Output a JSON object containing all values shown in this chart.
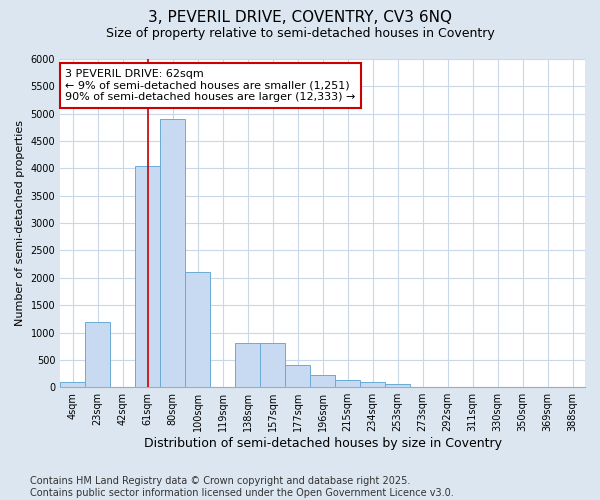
{
  "title1": "3, PEVERIL DRIVE, COVENTRY, CV3 6NQ",
  "title2": "Size of property relative to semi-detached houses in Coventry",
  "xlabel": "Distribution of semi-detached houses by size in Coventry",
  "ylabel": "Number of semi-detached properties",
  "categories": [
    "4sqm",
    "23sqm",
    "42sqm",
    "61sqm",
    "80sqm",
    "100sqm",
    "119sqm",
    "138sqm",
    "157sqm",
    "177sqm",
    "196sqm",
    "215sqm",
    "234sqm",
    "253sqm",
    "273sqm",
    "292sqm",
    "311sqm",
    "330sqm",
    "350sqm",
    "369sqm",
    "388sqm"
  ],
  "values": [
    100,
    1200,
    0,
    4050,
    4900,
    2100,
    0,
    800,
    800,
    400,
    220,
    130,
    100,
    55,
    0,
    0,
    0,
    0,
    0,
    0,
    0
  ],
  "bar_color": "#c8daf2",
  "bar_edge_color": "#6aaad4",
  "vline_x_index": 3,
  "annotation_text": "3 PEVERIL DRIVE: 62sqm\n← 9% of semi-detached houses are smaller (1,251)\n90% of semi-detached houses are larger (12,333) →",
  "annotation_box_facecolor": "#ffffff",
  "annotation_box_edgecolor": "#cc0000",
  "vline_color": "#cc0000",
  "ylim": [
    0,
    6000
  ],
  "yticks": [
    0,
    500,
    1000,
    1500,
    2000,
    2500,
    3000,
    3500,
    4000,
    4500,
    5000,
    5500,
    6000
  ],
  "bg_color": "#dce6f0",
  "plot_bg_color": "#ffffff",
  "grid_color": "#c8d8e8",
  "footer": "Contains HM Land Registry data © Crown copyright and database right 2025.\nContains public sector information licensed under the Open Government Licence v3.0.",
  "title1_fontsize": 11,
  "title2_fontsize": 9,
  "xlabel_fontsize": 9,
  "ylabel_fontsize": 8,
  "tick_fontsize": 7,
  "footer_fontsize": 7,
  "annotation_fontsize": 8
}
